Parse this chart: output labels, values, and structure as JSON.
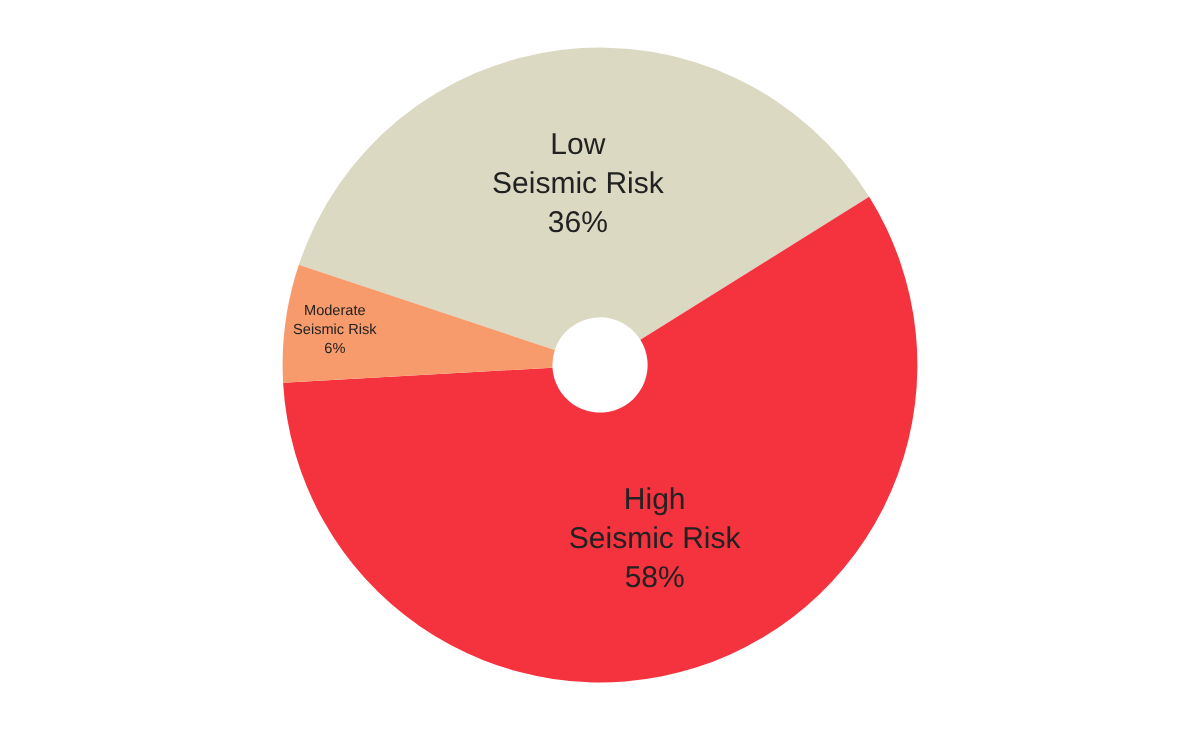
{
  "chart_data": {
    "type": "donut",
    "categories": [
      "Low Seismic Risk",
      "High Seismic Risk",
      "Moderate Seismic Risk"
    ],
    "values": [
      36,
      58,
      6
    ],
    "colors": [
      "#dcd9c3",
      "#f5333f",
      "#f79a6c"
    ],
    "value_labels": [
      "36%",
      "58%",
      "6%"
    ],
    "legend": false
  }
}
